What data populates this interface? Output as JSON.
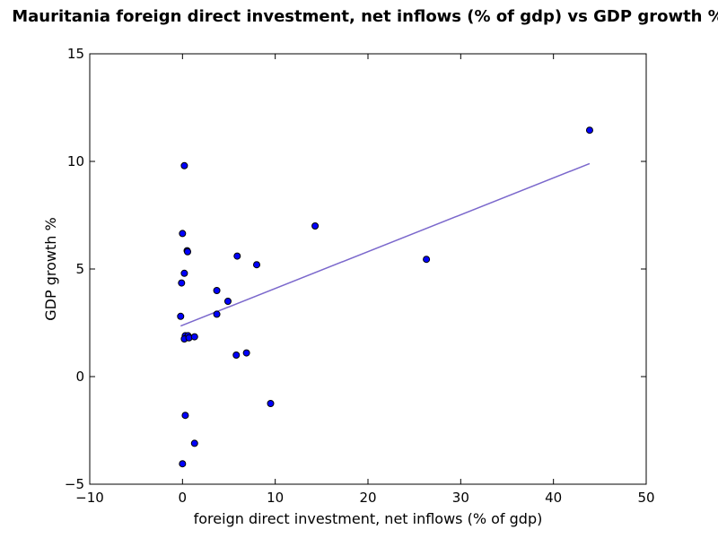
{
  "chart_data": {
    "type": "scatter",
    "title": "Mauritania foreign direct investment, net inflows (% of gdp) vs GDP growth %",
    "xlabel": "foreign direct investment, net inflows (% of gdp)",
    "ylabel": "GDP growth %",
    "xlim": [
      -10,
      50
    ],
    "ylim": [
      -5,
      15
    ],
    "x_ticks": [
      "−10",
      "0",
      "10",
      "20",
      "30",
      "40",
      "50"
    ],
    "y_ticks": [
      "−5",
      "0",
      "5",
      "10",
      "15"
    ],
    "grid": false,
    "points": [
      {
        "x": 0.2,
        "y": 9.8
      },
      {
        "x": 0.0,
        "y": 6.65
      },
      {
        "x": 0.5,
        "y": 5.85
      },
      {
        "x": 0.55,
        "y": 5.8
      },
      {
        "x": 0.2,
        "y": 4.8
      },
      {
        "x": -0.1,
        "y": 4.35
      },
      {
        "x": -0.2,
        "y": 2.8
      },
      {
        "x": 0.3,
        "y": 1.9
      },
      {
        "x": 0.6,
        "y": 1.9
      },
      {
        "x": 0.2,
        "y": 1.75
      },
      {
        "x": 0.7,
        "y": 1.8
      },
      {
        "x": 1.3,
        "y": 1.85
      },
      {
        "x": 0.3,
        "y": -1.8
      },
      {
        "x": 1.3,
        "y": -3.1
      },
      {
        "x": 0.0,
        "y": -4.05
      },
      {
        "x": 3.7,
        "y": 4.0
      },
      {
        "x": 3.7,
        "y": 2.9
      },
      {
        "x": 4.9,
        "y": 3.5
      },
      {
        "x": 5.9,
        "y": 5.6
      },
      {
        "x": 5.8,
        "y": 1.0
      },
      {
        "x": 6.9,
        "y": 1.1
      },
      {
        "x": 8.0,
        "y": 5.2
      },
      {
        "x": 9.5,
        "y": -1.25
      },
      {
        "x": 14.3,
        "y": 7.0
      },
      {
        "x": 26.3,
        "y": 5.45
      },
      {
        "x": 43.9,
        "y": 11.45
      }
    ],
    "trendline": {
      "x": [
        -0.2,
        43.9
      ],
      "y": [
        2.35,
        9.9
      ]
    },
    "colors": {
      "marker_fill": "#0000ff",
      "marker_edge": "#000000",
      "trendline": "#7b68cc"
    }
  }
}
